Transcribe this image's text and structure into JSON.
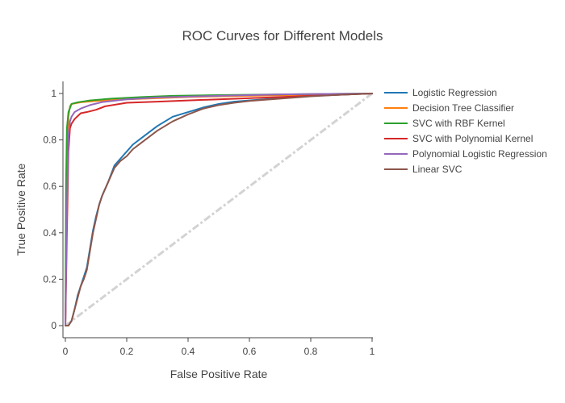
{
  "chart_data": {
    "type": "line",
    "title": "ROC Curves for Different Models",
    "xlabel": "False Positive Rate",
    "ylabel": "True Positive Rate",
    "xlim": [
      0,
      1
    ],
    "ylim": [
      0,
      1
    ],
    "x_ticks": [
      0,
      0.2,
      0.4,
      0.6,
      0.8,
      1
    ],
    "x_tick_labels": [
      "0",
      "0.2",
      "0.4",
      "0.6",
      "0.8",
      "1"
    ],
    "y_ticks": [
      0,
      0.2,
      0.4,
      0.6,
      0.8,
      1
    ],
    "y_tick_labels": [
      "0",
      "0.2",
      "0.4",
      "0.6",
      "0.8",
      "1"
    ],
    "grid": false,
    "legend_position": "right",
    "reference_line": {
      "x": [
        0,
        1
      ],
      "y": [
        0,
        1
      ],
      "color": "#d3d3d3",
      "style": "dashdot"
    },
    "series": [
      {
        "name": "Logistic Regression",
        "color": "#1f77b4",
        "x": [
          0,
          0.01,
          0.02,
          0.03,
          0.04,
          0.05,
          0.06,
          0.07,
          0.08,
          0.09,
          0.1,
          0.11,
          0.12,
          0.14,
          0.16,
          0.18,
          0.2,
          0.22,
          0.25,
          0.3,
          0.35,
          0.4,
          0.45,
          0.5,
          0.55,
          0.6,
          0.7,
          0.8,
          0.9,
          1
        ],
        "y": [
          0,
          0,
          0.02,
          0.07,
          0.13,
          0.17,
          0.21,
          0.25,
          0.33,
          0.41,
          0.47,
          0.52,
          0.56,
          0.62,
          0.69,
          0.72,
          0.75,
          0.78,
          0.81,
          0.86,
          0.9,
          0.92,
          0.94,
          0.955,
          0.965,
          0.97,
          0.98,
          0.99,
          0.995,
          1
        ]
      },
      {
        "name": "Decision Tree Classifier",
        "color": "#ff7f0e",
        "x": [
          0,
          0.005,
          0.01,
          0.015,
          0.02,
          0.05,
          0.1,
          0.2,
          0.4,
          0.6,
          0.8,
          1
        ],
        "y": [
          0,
          0.55,
          0.9,
          0.945,
          0.955,
          0.962,
          0.968,
          0.975,
          0.985,
          0.99,
          0.995,
          1
        ]
      },
      {
        "name": "SVC with RBF Kernel",
        "color": "#2ca02c",
        "x": [
          0,
          0.002,
          0.005,
          0.01,
          0.02,
          0.04,
          0.08,
          0.15,
          0.25,
          0.35,
          0.5,
          0.7,
          1
        ],
        "y": [
          0,
          0.6,
          0.85,
          0.92,
          0.955,
          0.962,
          0.97,
          0.978,
          0.985,
          0.99,
          0.993,
          0.996,
          1
        ]
      },
      {
        "name": "SVC with Polynomial Kernel",
        "color": "#d62728",
        "x": [
          0,
          0.005,
          0.01,
          0.015,
          0.02,
          0.03,
          0.05,
          0.07,
          0.1,
          0.13,
          0.2,
          0.3,
          0.5,
          0.7,
          0.9,
          1
        ],
        "y": [
          0,
          0.4,
          0.75,
          0.85,
          0.87,
          0.89,
          0.915,
          0.92,
          0.93,
          0.945,
          0.96,
          0.965,
          0.975,
          0.985,
          0.995,
          1
        ]
      },
      {
        "name": "Polynomial Logistic Regression",
        "color": "#9467bd",
        "x": [
          0,
          0.005,
          0.01,
          0.015,
          0.02,
          0.03,
          0.05,
          0.08,
          0.12,
          0.2,
          0.3,
          0.5,
          0.7,
          1
        ],
        "y": [
          0,
          0.5,
          0.82,
          0.88,
          0.9,
          0.92,
          0.935,
          0.95,
          0.963,
          0.975,
          0.983,
          0.99,
          0.996,
          1
        ]
      },
      {
        "name": "Linear SVC",
        "color": "#8c564b",
        "x": [
          0,
          0.01,
          0.02,
          0.03,
          0.04,
          0.05,
          0.06,
          0.07,
          0.08,
          0.09,
          0.1,
          0.11,
          0.12,
          0.14,
          0.16,
          0.18,
          0.2,
          0.22,
          0.25,
          0.3,
          0.35,
          0.4,
          0.45,
          0.5,
          0.55,
          0.6,
          0.7,
          0.8,
          0.9,
          1
        ],
        "y": [
          0,
          0,
          0.02,
          0.07,
          0.12,
          0.17,
          0.2,
          0.24,
          0.32,
          0.4,
          0.46,
          0.52,
          0.56,
          0.62,
          0.68,
          0.71,
          0.73,
          0.76,
          0.79,
          0.84,
          0.88,
          0.91,
          0.935,
          0.95,
          0.96,
          0.968,
          0.978,
          0.988,
          0.995,
          1
        ]
      }
    ]
  }
}
